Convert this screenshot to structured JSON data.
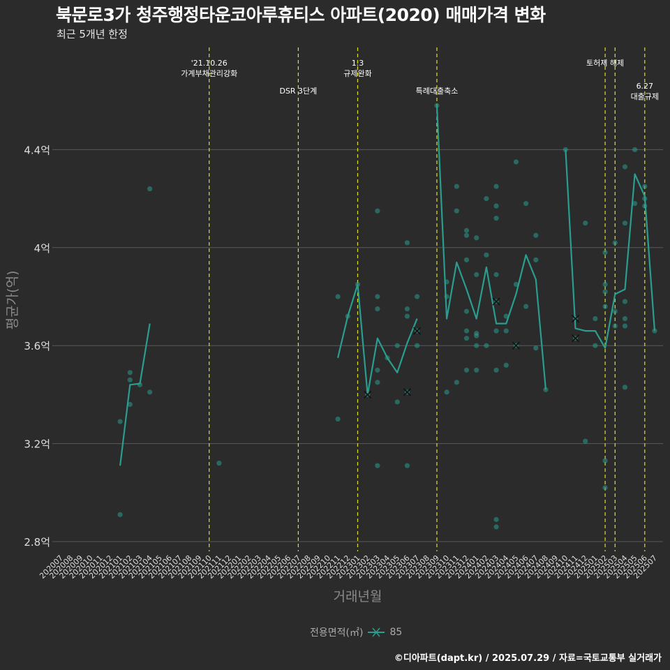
{
  "title": "북문로3가 청주행정타운코아루휴티스 아파트(2020) 매매가격 변화",
  "subtitle": "최근 5개년 한정",
  "footer": "©디아파트(dapt.kr) / 2025.07.29 / 자료=국토교통부 실거래가",
  "legend": {
    "title": "전용면적(㎡)",
    "label": "85"
  },
  "colors": {
    "background": "#2b2b2b",
    "series": "#2a9d8f",
    "vline": "#e0e020",
    "grid": "#5a5a5a",
    "text": "#dddddd"
  },
  "chart_data": {
    "type": "line",
    "xlabel": "거래년월",
    "ylabel": "평균가(억)",
    "ylim": [
      2.76,
      4.84
    ],
    "yticks": [
      2.8,
      3.2,
      3.6,
      4.0,
      4.4
    ],
    "ytick_labels": [
      "2.8억",
      "3.2억",
      "3.6억",
      "4억",
      "4.4억"
    ],
    "categories": [
      "202007",
      "202008",
      "202009",
      "202010",
      "202011",
      "202012",
      "202101",
      "202102",
      "202103",
      "202104",
      "202105",
      "202106",
      "202107",
      "202108",
      "202109",
      "202110",
      "202111",
      "202112",
      "202201",
      "202202",
      "202203",
      "202204",
      "202205",
      "202206",
      "202207",
      "202208",
      "202209",
      "202210",
      "202211",
      "202212",
      "202301",
      "202302",
      "202303",
      "202304",
      "202305",
      "202306",
      "202307",
      "202308",
      "202309",
      "202310",
      "202311",
      "202312",
      "202401",
      "202402",
      "202403",
      "202404",
      "202405",
      "202406",
      "202407",
      "202408",
      "202409",
      "202410",
      "202411",
      "202412",
      "202501",
      "202502",
      "202503",
      "202504",
      "202505",
      "202506",
      "202507"
    ],
    "series": [
      {
        "name": "85",
        "line_segments": [
          [
            [
              "202101",
              3.11
            ],
            [
              "202102",
              3.44
            ],
            [
              "202103",
              3.445
            ],
            [
              "202104",
              3.69
            ]
          ],
          [
            [
              "202211",
              3.55
            ],
            [
              "202212",
              3.72
            ],
            [
              "202301",
              3.85
            ],
            [
              "202302",
              3.4
            ],
            [
              "202303",
              3.63
            ],
            [
              "202304",
              3.55
            ],
            [
              "202305",
              3.49
            ],
            [
              "202306",
              3.61
            ],
            [
              "202307",
              3.71
            ]
          ],
          [
            [
              "202309",
              4.58
            ],
            [
              "202310",
              3.71
            ],
            [
              "202311",
              3.94
            ],
            [
              "202312",
              3.83
            ],
            [
              "202401",
              3.71
            ],
            [
              "202402",
              3.92
            ],
            [
              "202403",
              3.69
            ],
            [
              "202404",
              3.69
            ],
            [
              "202405",
              3.81
            ],
            [
              "202406",
              3.97
            ],
            [
              "202407",
              3.87
            ],
            [
              "202408",
              3.42
            ]
          ],
          [
            [
              "202410",
              4.4
            ],
            [
              "202411",
              3.67
            ],
            [
              "202412",
              3.66
            ],
            [
              "202501",
              3.66
            ],
            [
              "202502",
              3.59
            ],
            [
              "202503",
              3.81
            ],
            [
              "202504",
              3.83
            ],
            [
              "202505",
              4.3
            ],
            [
              "202506",
              4.21
            ],
            [
              "202507",
              3.66
            ]
          ]
        ],
        "points": [
          [
            "202101",
            3.29
          ],
          [
            "202101",
            2.91
          ],
          [
            "202102",
            3.49
          ],
          [
            "202102",
            3.46
          ],
          [
            "202102",
            3.36
          ],
          [
            "202103",
            3.44
          ],
          [
            "202104",
            4.24
          ],
          [
            "202104",
            3.41
          ],
          [
            "202111",
            3.12
          ],
          [
            "202211",
            3.8
          ],
          [
            "202211",
            3.3
          ],
          [
            "202212",
            3.72
          ],
          [
            "202301",
            3.85
          ],
          [
            "202302",
            3.4
          ],
          [
            "202303",
            3.8
          ],
          [
            "202303",
            3.75
          ],
          [
            "202303",
            3.5
          ],
          [
            "202303",
            3.45
          ],
          [
            "202303",
            3.11
          ],
          [
            "202303",
            4.15
          ],
          [
            "202304",
            3.55
          ],
          [
            "202305",
            3.6
          ],
          [
            "202305",
            3.37
          ],
          [
            "202306",
            4.02
          ],
          [
            "202306",
            3.75
          ],
          [
            "202306",
            3.72
          ],
          [
            "202306",
            3.41
          ],
          [
            "202306",
            3.11
          ],
          [
            "202307",
            3.8
          ],
          [
            "202307",
            3.66
          ],
          [
            "202307",
            3.6
          ],
          [
            "202309",
            4.58
          ],
          [
            "202310",
            3.86
          ],
          [
            "202310",
            3.8
          ],
          [
            "202310",
            3.41
          ],
          [
            "202311",
            4.25
          ],
          [
            "202311",
            4.15
          ],
          [
            "202311",
            3.45
          ],
          [
            "202312",
            4.07
          ],
          [
            "202312",
            4.05
          ],
          [
            "202312",
            3.95
          ],
          [
            "202312",
            3.74
          ],
          [
            "202312",
            3.66
          ],
          [
            "202312",
            3.63
          ],
          [
            "202312",
            3.5
          ],
          [
            "202401",
            4.04
          ],
          [
            "202401",
            3.89
          ],
          [
            "202401",
            3.65
          ],
          [
            "202401",
            3.64
          ],
          [
            "202401",
            3.6
          ],
          [
            "202401",
            3.5
          ],
          [
            "202402",
            4.2
          ],
          [
            "202402",
            3.97
          ],
          [
            "202402",
            3.6
          ],
          [
            "202403",
            4.25
          ],
          [
            "202403",
            4.17
          ],
          [
            "202403",
            4.12
          ],
          [
            "202403",
            3.89
          ],
          [
            "202403",
            3.78
          ],
          [
            "202403",
            3.66
          ],
          [
            "202403",
            3.5
          ],
          [
            "202403",
            2.89
          ],
          [
            "202403",
            2.86
          ],
          [
            "202404",
            3.72
          ],
          [
            "202404",
            3.66
          ],
          [
            "202404",
            3.52
          ],
          [
            "202405",
            4.35
          ],
          [
            "202405",
            3.85
          ],
          [
            "202405",
            3.6
          ],
          [
            "202406",
            4.18
          ],
          [
            "202406",
            3.76
          ],
          [
            "202407",
            4.05
          ],
          [
            "202407",
            3.95
          ],
          [
            "202407",
            3.59
          ],
          [
            "202408",
            3.42
          ],
          [
            "202410",
            4.4
          ],
          [
            "202411",
            3.71
          ],
          [
            "202411",
            3.63
          ],
          [
            "202412",
            4.1
          ],
          [
            "202412",
            3.21
          ],
          [
            "202501",
            3.71
          ],
          [
            "202501",
            3.6
          ],
          [
            "202502",
            3.98
          ],
          [
            "202502",
            3.85
          ],
          [
            "202502",
            3.82
          ],
          [
            "202502",
            3.76
          ],
          [
            "202502",
            3.13
          ],
          [
            "202502",
            3.02
          ],
          [
            "202503",
            4.02
          ],
          [
            "202503",
            3.74
          ],
          [
            "202503",
            3.68
          ],
          [
            "202504",
            4.33
          ],
          [
            "202504",
            4.1
          ],
          [
            "202504",
            3.78
          ],
          [
            "202504",
            3.71
          ],
          [
            "202504",
            3.68
          ],
          [
            "202504",
            3.43
          ],
          [
            "202505",
            4.4
          ],
          [
            "202505",
            4.18
          ],
          [
            "202506",
            4.25
          ],
          [
            "202506",
            4.2
          ],
          [
            "202506",
            4.17
          ],
          [
            "202507",
            3.66
          ]
        ],
        "cancelled_points": [
          [
            "202302",
            3.4
          ],
          [
            "202306",
            3.41
          ],
          [
            "202307",
            3.66
          ],
          [
            "202403",
            3.78
          ],
          [
            "202405",
            3.6
          ],
          [
            "202411",
            3.71
          ],
          [
            "202411",
            3.63
          ]
        ]
      }
    ],
    "events": [
      {
        "month": "202110",
        "lines": [
          "'21.10.26",
          "가계부채관리강화"
        ],
        "level": 0
      },
      {
        "month": "202207",
        "lines": [
          "DSR 3단계"
        ],
        "level": 1
      },
      {
        "month": "202301",
        "lines": [
          "1.3",
          "규제완화"
        ],
        "level": 0
      },
      {
        "month": "202309",
        "lines": [
          "특례대출축소"
        ],
        "level": 1
      },
      {
        "month": "202502",
        "lines": [
          "토허제 해제"
        ],
        "level": 0
      },
      {
        "month": "202503",
        "lines": [],
        "level": 0
      },
      {
        "month": "202506",
        "lines": [
          "6.27",
          "대출규제"
        ],
        "level": 2
      }
    ]
  }
}
